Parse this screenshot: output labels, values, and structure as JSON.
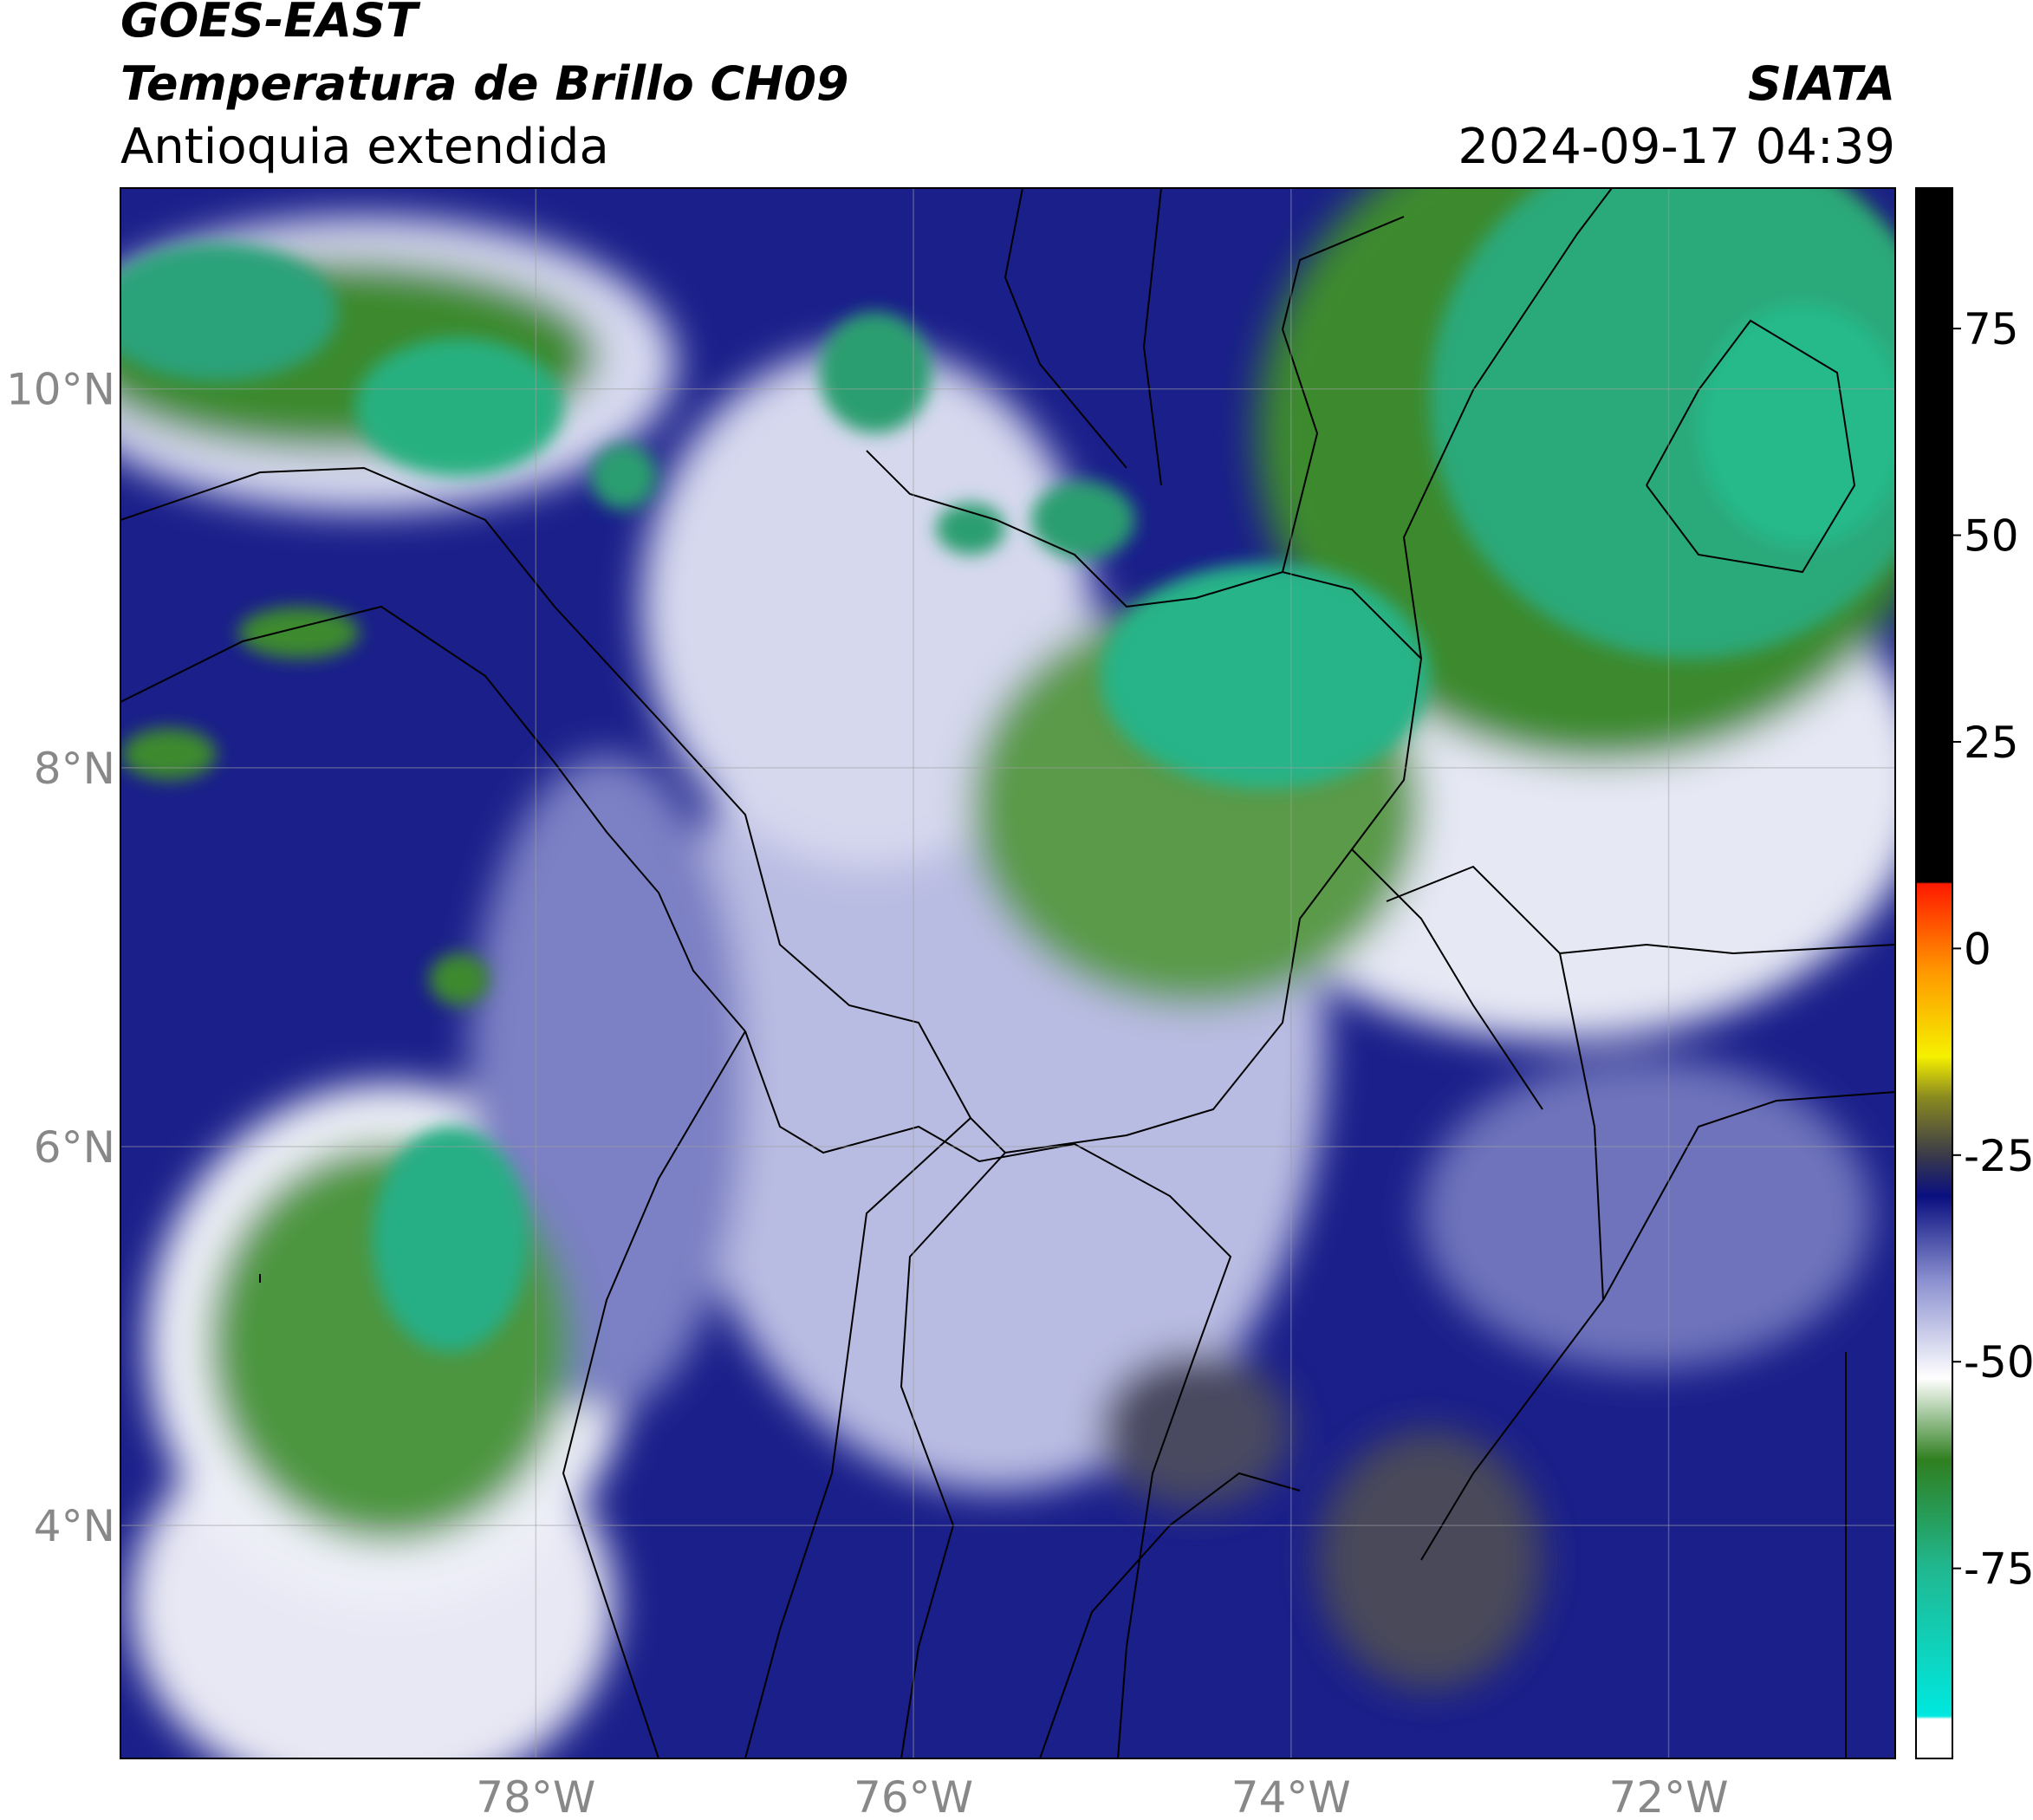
{
  "header": {
    "title": "GOES-EAST",
    "subtitle": "Temperatura de Brillo CH09",
    "region": "Antioquia extendida",
    "source": "SIATA",
    "timestamp": "2024-09-17 04:39"
  },
  "map": {
    "xlim": [
      -80.2,
      -70.8
    ],
    "ylim": [
      2.77,
      11.06
    ],
    "xticks": [
      {
        "value": -78,
        "label": "78°W"
      },
      {
        "value": -76,
        "label": "76°W"
      },
      {
        "value": -74,
        "label": "74°W"
      },
      {
        "value": -72,
        "label": "72°W"
      }
    ],
    "yticks": [
      {
        "value": 10,
        "label": "10°N"
      },
      {
        "value": 8,
        "label": "8°N"
      },
      {
        "value": 6,
        "label": "6°N"
      },
      {
        "value": 4,
        "label": "4°N"
      }
    ],
    "grid": true
  },
  "colorbar": {
    "clim": [
      -98,
      92
    ],
    "ticks": [
      75,
      50,
      25,
      0,
      -25,
      -50,
      -75
    ]
  }
}
